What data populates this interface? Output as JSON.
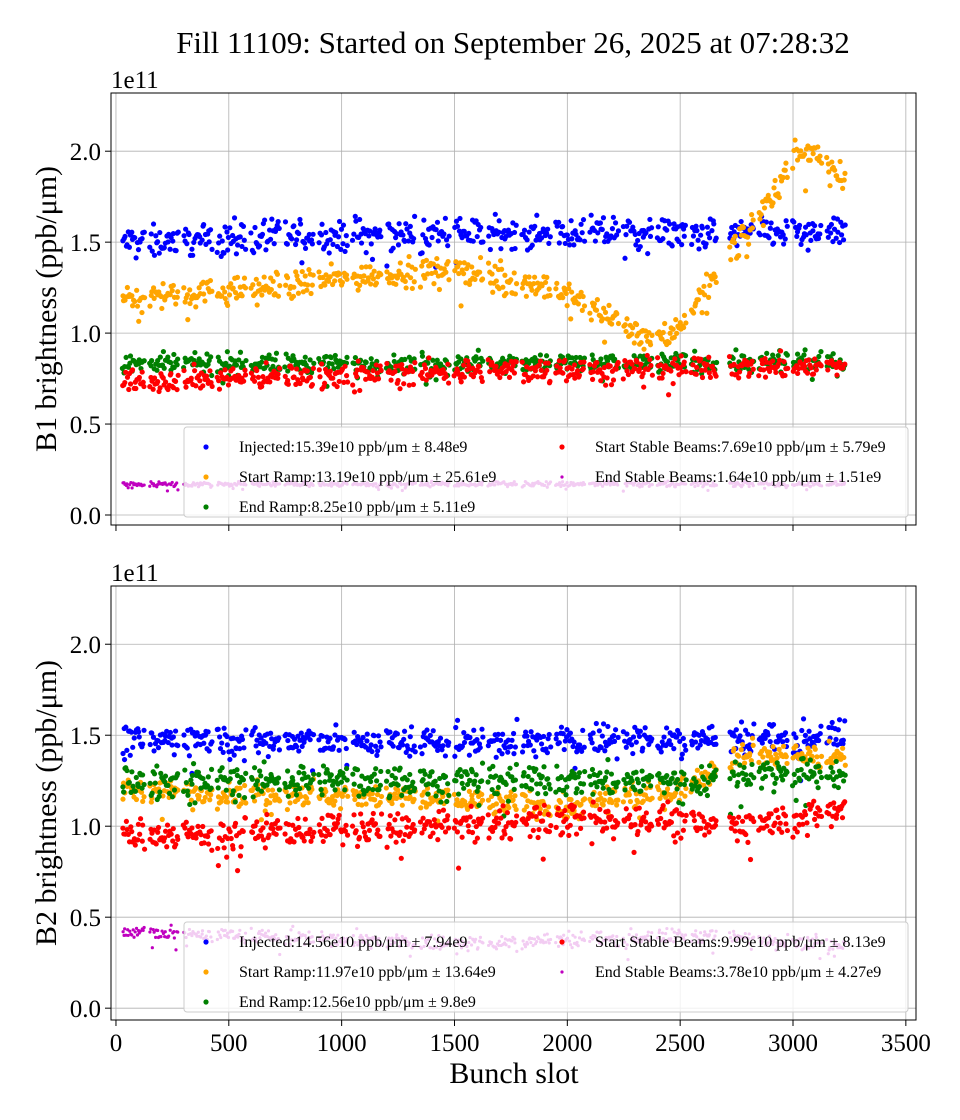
{
  "chart_data": [
    {
      "type": "scatter",
      "title": "Fill 11109: Started on September 26, 2025 at 07:28:32",
      "ylabel": "B1 brightness (ppb/μm)",
      "xlabel": "",
      "y_scale_label": "1e11",
      "xlim": [
        -22,
        3545
      ],
      "ylim": [
        -0.055,
        2.32
      ],
      "xticks": [
        0,
        500,
        1000,
        1500,
        2000,
        2500,
        3000,
        3500
      ],
      "yticks": [
        "0.0",
        "0.5",
        "1.0",
        "1.5",
        "2.0"
      ],
      "grid": true,
      "legend_placement": "lower-right",
      "series_note_units": "bunch slot vs brightness in 1e11 ppb/μm; trends given as [slot, value] anchors",
      "series": [
        {
          "name": "Injected:15.39e10 ppb/μm ± 8.48e9",
          "color": "#0000ff",
          "trend": [
            [
              30,
              1.5
            ],
            [
              500,
              1.52
            ],
            [
              1500,
              1.55
            ],
            [
              3230,
              1.55
            ]
          ],
          "spread": 0.06
        },
        {
          "name": "Start Ramp:13.19e10 ppb/μm ± 25.61e9",
          "color": "#ffa500",
          "trend": [
            [
              30,
              1.2
            ],
            [
              500,
              1.23
            ],
            [
              1000,
              1.3
            ],
            [
              1500,
              1.36
            ],
            [
              1900,
              1.25
            ],
            [
              2100,
              1.15
            ],
            [
              2300,
              1.01
            ],
            [
              2450,
              0.97
            ],
            [
              2600,
              1.22
            ],
            [
              2750,
              1.5
            ],
            [
              2900,
              1.72
            ],
            [
              3000,
              1.98
            ],
            [
              3100,
              2.0
            ],
            [
              3230,
              1.85
            ]
          ],
          "spread": 0.05
        },
        {
          "name": "End Ramp:8.25e10 ppb/μm ± 5.11e9",
          "color": "#008000",
          "trend": [
            [
              30,
              0.83
            ],
            [
              3230,
              0.84
            ]
          ],
          "spread": 0.04
        },
        {
          "name": "Start Stable Beams:7.69e10 ppb/μm ± 5.79e9",
          "color": "#ff0000",
          "trend": [
            [
              30,
              0.74
            ],
            [
              1500,
              0.79
            ],
            [
              3230,
              0.82
            ]
          ],
          "spread": 0.045
        },
        {
          "name": "End Stable Beams:1.64e10 ppb/μm ± 1.51e9",
          "color": "#bf00bf",
          "trend": [
            [
              30,
              0.17
            ],
            [
              3230,
              0.17
            ]
          ],
          "spread": 0.01
        }
      ]
    },
    {
      "type": "scatter",
      "title": "",
      "ylabel": "B2 brightness (ppb/μm)",
      "xlabel": "Bunch slot",
      "y_scale_label": "1e11",
      "xlim": [
        -22,
        3545
      ],
      "ylim": [
        -0.065,
        2.32
      ],
      "xticks": [
        0,
        500,
        1000,
        1500,
        2000,
        2500,
        3000,
        3500
      ],
      "yticks": [
        "0.0",
        "0.5",
        "1.0",
        "1.5",
        "2.0"
      ],
      "grid": true,
      "legend_placement": "lower-right",
      "series": [
        {
          "name": "Injected:14.56e10 ppb/μm ± 7.94e9",
          "color": "#0000ff",
          "trend": [
            [
              30,
              1.48
            ],
            [
              1500,
              1.46
            ],
            [
              2500,
              1.48
            ],
            [
              3230,
              1.5
            ]
          ],
          "spread": 0.06
        },
        {
          "name": "Start Ramp:11.97e10 ppb/μm ± 13.64e9",
          "color": "#ffa500",
          "trend": [
            [
              30,
              1.2
            ],
            [
              1500,
              1.15
            ],
            [
              2000,
              1.1
            ],
            [
              2500,
              1.2
            ],
            [
              2750,
              1.4
            ],
            [
              3230,
              1.38
            ]
          ],
          "spread": 0.05
        },
        {
          "name": "End Ramp:12.56e10 ppb/μm ± 9.8e9",
          "color": "#008000",
          "trend": [
            [
              30,
              1.25
            ],
            [
              2600,
              1.25
            ],
            [
              2750,
              1.3
            ],
            [
              3230,
              1.28
            ]
          ],
          "spread": 0.06
        },
        {
          "name": "Start Stable Beams:9.99e10 ppb/μm ± 8.13e9",
          "color": "#ff0000",
          "trend": [
            [
              30,
              0.95
            ],
            [
              1500,
              1.0
            ],
            [
              2200,
              1.05
            ],
            [
              2800,
              1.0
            ],
            [
              3230,
              1.1
            ]
          ],
          "spread": 0.06
        },
        {
          "name": "End Stable Beams:3.78e10 ppb/μm ± 4.27e9",
          "color": "#bf00bf",
          "trend": [
            [
              30,
              0.42
            ],
            [
              1000,
              0.38
            ],
            [
              1500,
              0.35
            ],
            [
              2000,
              0.38
            ],
            [
              2600,
              0.4
            ],
            [
              3230,
              0.35
            ]
          ],
          "spread": 0.03
        }
      ]
    }
  ]
}
